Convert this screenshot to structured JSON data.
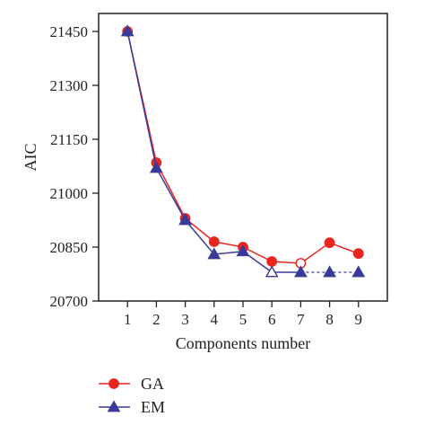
{
  "chart_data": {
    "type": "line",
    "x": [
      1,
      2,
      3,
      4,
      5,
      6,
      7,
      8,
      9
    ],
    "xlabel": "Components number",
    "ylabel": "AIC",
    "xlim": [
      0,
      10
    ],
    "ylim": [
      20700,
      21500
    ],
    "xticks": [
      "1",
      "2",
      "3",
      "4",
      "5",
      "6",
      "7",
      "8",
      "9"
    ],
    "yticks": [
      "20700",
      "20850",
      "21000",
      "21150",
      "21300",
      "21450"
    ],
    "ytick_values": [
      20700,
      20850,
      21000,
      21150,
      21300,
      21450
    ],
    "grid": false,
    "legend_position": "bottom-left",
    "series": [
      {
        "name": "GA",
        "color": "#e8251f",
        "marker": "circle",
        "values": [
          21450,
          21085,
          20930,
          20865,
          20850,
          20810,
          20805,
          20862,
          20832
        ],
        "open_marker_indices": [
          6
        ]
      },
      {
        "name": "EM",
        "color": "#3a3a9a",
        "marker": "triangle",
        "values": [
          21450,
          21070,
          20925,
          20830,
          20838,
          20780,
          20780,
          20780,
          20780
        ],
        "open_marker_indices": [
          5
        ],
        "dashed_from_index": 6
      }
    ]
  }
}
